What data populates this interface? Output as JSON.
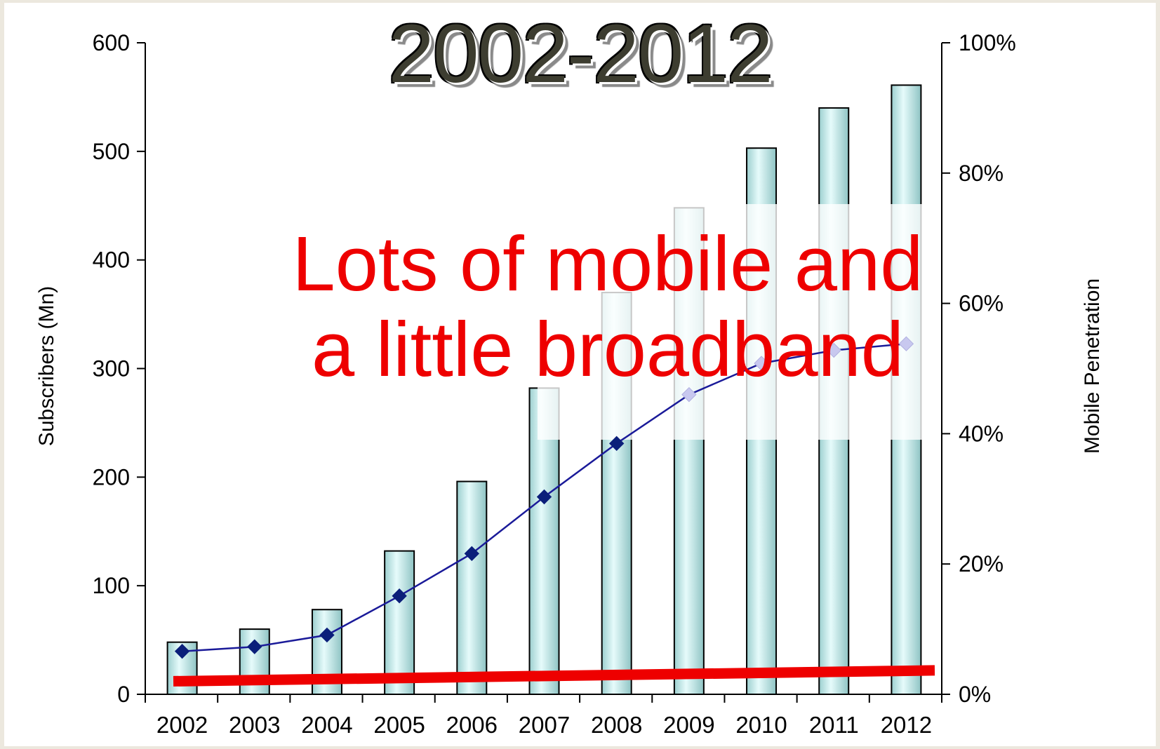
{
  "title": "2002-2012",
  "annotation": "Lots of mobile and a little broadband",
  "colors": {
    "bar_fill": "#bfeaea",
    "bar_stroke": "#000000",
    "line_color": "#1a1a99",
    "marker_color": "#0b1f7a",
    "broadband_line": "#ee0000",
    "annotation_text": "#ee0000"
  },
  "chart_data": {
    "type": "bar",
    "categories": [
      "2002",
      "2003",
      "2004",
      "2005",
      "2006",
      "2007",
      "2008",
      "2009",
      "2010",
      "2011",
      "2012"
    ],
    "values": [
      48,
      60,
      78,
      132,
      196,
      282,
      370,
      448,
      503,
      540,
      561
    ],
    "ylabel": "Subscribers (Mn)",
    "ylim": [
      0,
      600
    ],
    "yticks": [
      0,
      100,
      200,
      300,
      400,
      500,
      600
    ],
    "y2label": "Mobile Penetration",
    "y2lim": [
      0,
      100
    ],
    "y2ticks": [
      "0%",
      "20%",
      "40%",
      "60%",
      "80%",
      "100%"
    ],
    "line_series": {
      "axis": "right",
      "unit": "%",
      "values": [
        6.6,
        7.3,
        9.1,
        15.1,
        21.6,
        30.3,
        38.5,
        46.0,
        50.8,
        52.8,
        53.8
      ]
    },
    "broadband_series": {
      "axis": "left",
      "values": [
        12,
        13,
        14,
        15,
        16,
        17,
        18,
        19,
        20,
        21,
        22
      ]
    },
    "grid": false,
    "legend": "none"
  }
}
